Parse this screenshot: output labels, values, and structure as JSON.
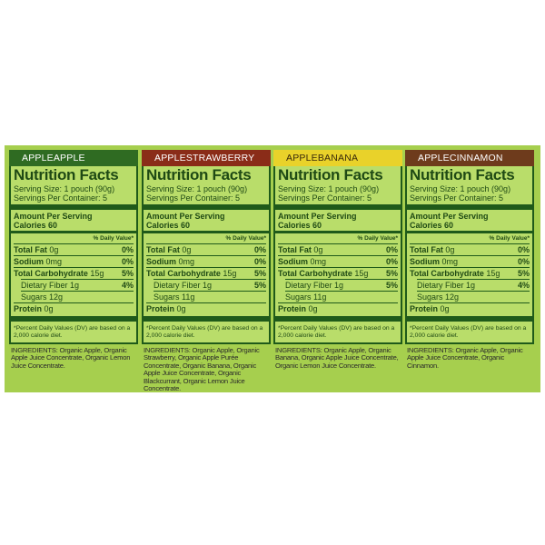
{
  "panels": [
    {
      "flavor": "APPLEAPPLE",
      "title": "Nutrition Facts",
      "serving_size": "Serving Size: 1 pouch (90g)",
      "servings_per_container": "Servings Per Container: 5",
      "amount_per_serving": "Amount Per Serving",
      "calories": "Calories 60",
      "dv_header": "% Daily Value*",
      "rows": [
        {
          "name": "Total Fat",
          "amount": "0g",
          "dv": "0%"
        },
        {
          "name": "Sodium",
          "amount": "0mg",
          "dv": "0%"
        },
        {
          "name": "Total Carbohydrate",
          "amount": "15g",
          "dv": "5%"
        },
        {
          "name": "Dietary Fiber",
          "amount": "1g",
          "dv": "4%"
        },
        {
          "name": "Sugars",
          "amount": "12g"
        }
      ],
      "protein": {
        "name": "Protein",
        "amount": "0g"
      },
      "footnote": "*Percent Daily Values (DV) are based on a 2,000 calorie diet.",
      "ingredients": "INGREDIENTS: Organic Apple, Organic Apple Juice Concentrate, Organic Lemon Juice Concentrate."
    },
    {
      "flavor": "APPLESTRAWBERRY",
      "title": "Nutrition Facts",
      "serving_size": "Serving Size: 1 pouch (90g)",
      "servings_per_container": "Servings Per Container: 5",
      "amount_per_serving": "Amount Per Serving",
      "calories": "Calories 60",
      "dv_header": "% Daily Value*",
      "rows": [
        {
          "name": "Total Fat",
          "amount": "0g",
          "dv": "0%"
        },
        {
          "name": "Sodium",
          "amount": "0mg",
          "dv": "0%"
        },
        {
          "name": "Total Carbohydrate",
          "amount": "15g",
          "dv": "5%"
        },
        {
          "name": "Dietary Fiber",
          "amount": "1g",
          "dv": "5%"
        },
        {
          "name": "Sugars",
          "amount": "11g"
        }
      ],
      "protein": {
        "name": "Protein",
        "amount": "0g"
      },
      "footnote": "*Percent Daily Values (DV) are based on a 2,000 calorie diet.",
      "ingredients": "INGREDIENTS: Organic Apple, Organic Strawberry, Organic Apple Purée Concentrate, Organic Banana, Organic Apple Juice Concentrate, Organic Blackcurrant, Organic Lemon Juice Concentrate."
    },
    {
      "flavor": "APPLEBANANA",
      "title": "Nutrition Facts",
      "serving_size": "Serving Size: 1 pouch (90g)",
      "servings_per_container": "Servings Per Container: 5",
      "amount_per_serving": "Amount Per Serving",
      "calories": "Calories 60",
      "dv_header": "% Daily Value*",
      "rows": [
        {
          "name": "Total Fat",
          "amount": "0g",
          "dv": "0%"
        },
        {
          "name": "Sodium",
          "amount": "0mg",
          "dv": "0%"
        },
        {
          "name": "Total Carbohydrate",
          "amount": "15g",
          "dv": "5%"
        },
        {
          "name": "Dietary Fiber",
          "amount": "1g",
          "dv": "5%"
        },
        {
          "name": "Sugars",
          "amount": "11g"
        }
      ],
      "protein": {
        "name": "Protein",
        "amount": "0g"
      },
      "footnote": "*Percent Daily Values (DV) are based on a 2,000 calorie diet.",
      "ingredients": "INGREDIENTS: Organic Apple, Organic Banana, Organic Apple Juice Concentrate, Organic Lemon Juice Concentrate."
    },
    {
      "flavor": "APPLECINNAMON",
      "title": "Nutrition Facts",
      "serving_size": "Serving Size: 1 pouch (90g)",
      "servings_per_container": "Servings Per Container: 5",
      "amount_per_serving": "Amount Per Serving",
      "calories": "Calories 60",
      "dv_header": "% Daily Value*",
      "rows": [
        {
          "name": "Total Fat",
          "amount": "0g",
          "dv": "0%"
        },
        {
          "name": "Sodium",
          "amount": "0mg",
          "dv": "0%"
        },
        {
          "name": "Total Carbohydrate",
          "amount": "15g",
          "dv": "5%"
        },
        {
          "name": "Dietary Fiber",
          "amount": "1g",
          "dv": "4%"
        },
        {
          "name": "Sugars",
          "amount": "12g"
        }
      ],
      "protein": {
        "name": "Protein",
        "amount": "0g"
      },
      "footnote": "*Percent Daily Values (DV) are based on a 2,000 calorie diet.",
      "ingredients": "INGREDIENTS: Organic Apple, Organic Apple Juice Concentrate, Organic Cinnamon."
    }
  ]
}
